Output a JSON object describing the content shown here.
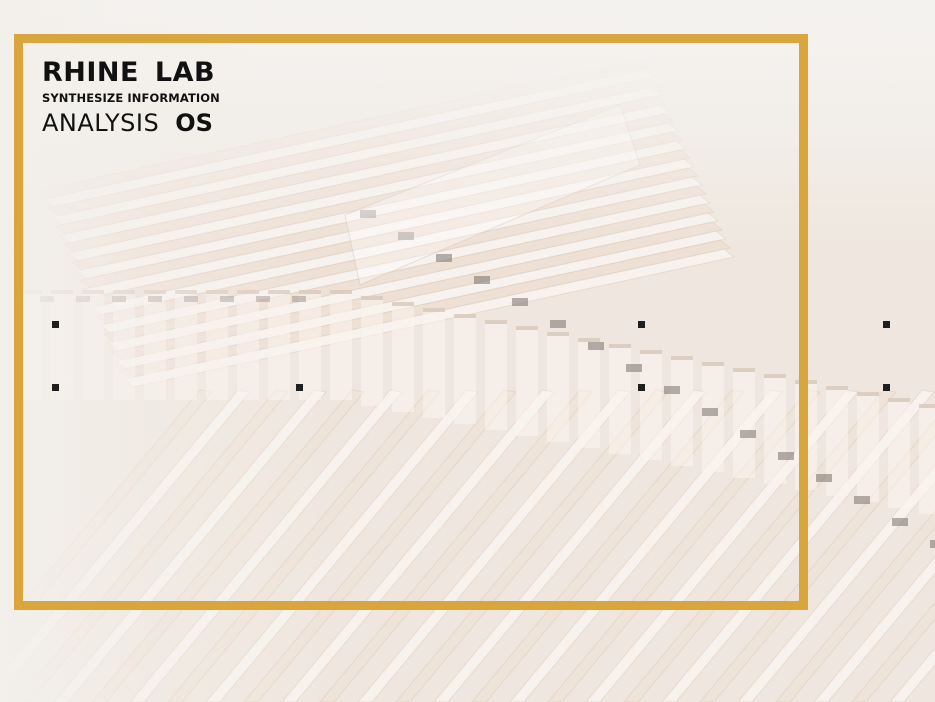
{
  "brand": {
    "name": "RHINE LAB",
    "tagline": "SYNTHESIZE INFORMATION",
    "product_main": "ANALYSIS",
    "product_suffix": "OS"
  },
  "colors": {
    "frame": "#d8a63c",
    "background": "#efebe6",
    "handle": "#1f1f1f"
  }
}
